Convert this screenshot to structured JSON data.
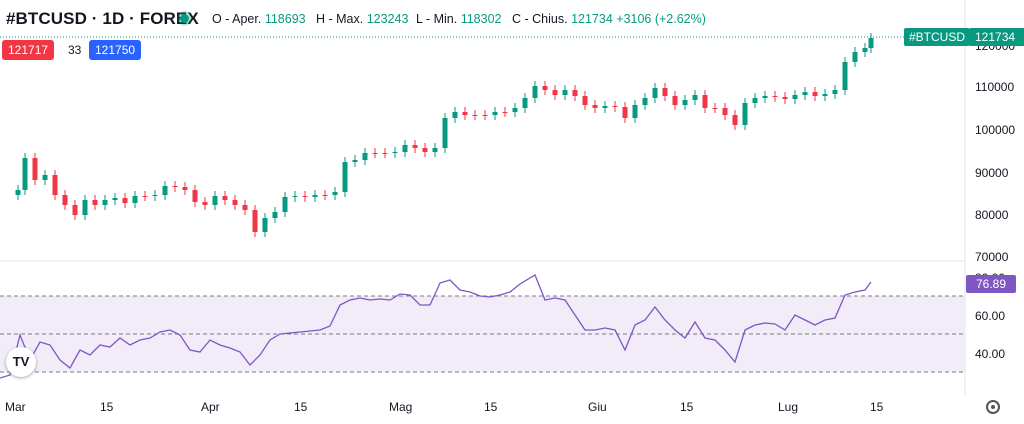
{
  "header": {
    "symbol": "#BTCUSD · 1D · FOREX",
    "open_label": "O - Aper.",
    "open_value": "118693",
    "high_label": "H - Max.",
    "high_value": "123243",
    "low_label": "L - Min.",
    "low_value": "118302",
    "close_label": "C - Chius.",
    "close_value": "121734",
    "change": "+3106 (+2.62%)"
  },
  "quote": {
    "bid": "121717",
    "spread": "33",
    "ask": "121750"
  },
  "last_price": {
    "symbol_tag": "#BTCUSD",
    "price": "121734",
    "rsi": "76.89"
  },
  "y_axis": {
    "price_ticks": [
      "120000",
      "110000",
      "100000",
      "90000",
      "80000",
      "70000"
    ],
    "rsi_ticks": [
      "80.00",
      "60.00",
      "40.00"
    ]
  },
  "x_axis": {
    "ticks": [
      "Mar",
      "15",
      "Apr",
      "15",
      "Mag",
      "15",
      "Giu",
      "15",
      "Lug",
      "15"
    ]
  },
  "colors": {
    "up": "#089981",
    "down": "#f23645",
    "rsi_line": "#7e57c2",
    "rsi_band": "#ede7f6"
  },
  "logo_text": "TV",
  "icons": {
    "live": "live-dot-icon",
    "settings": "settings-icon",
    "logo": "tradingview-logo-icon"
  }
}
